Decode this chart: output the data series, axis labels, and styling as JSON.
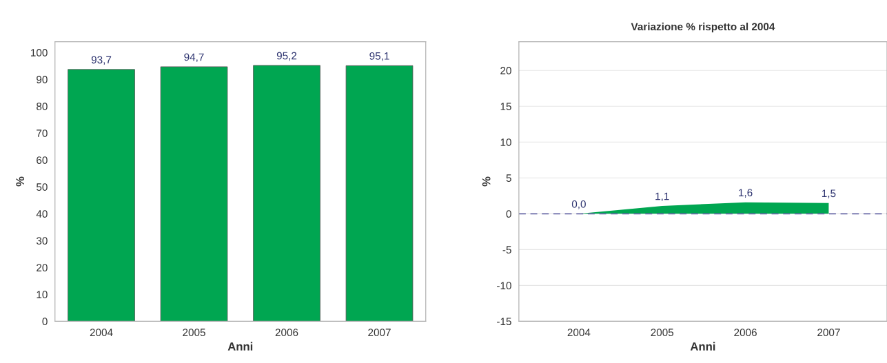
{
  "chart_data": [
    {
      "type": "bar",
      "categories": [
        "2004",
        "2005",
        "2006",
        "2007"
      ],
      "xlabel": "Anni",
      "ylabel": "%",
      "series": [
        {
          "color": "#00a651",
          "values": [
            93.7,
            94.7,
            95.2,
            95.1
          ],
          "value_labels": [
            "93,7",
            "94,7",
            "95,2",
            "95,1"
          ]
        }
      ],
      "ylim": [
        0,
        104
      ],
      "yticks": [
        0,
        10,
        20,
        30,
        40,
        50,
        60,
        70,
        80,
        90,
        100
      ],
      "grid": false
    },
    {
      "type": "area",
      "title": "Variazione % rispetto al 2004",
      "categories": [
        "2004",
        "2005",
        "2006",
        "2007"
      ],
      "xlabel": "Anni",
      "ylabel": "%",
      "series": [
        {
          "color": "#00a651",
          "values": [
            0.0,
            1.1,
            1.6,
            1.5
          ],
          "value_labels": [
            "0,0",
            "1,1",
            "1,6",
            "1,5"
          ]
        }
      ],
      "ylim": [
        -15,
        24
      ],
      "yticks": [
        -15,
        -10,
        -5,
        0,
        5,
        10,
        15,
        20
      ],
      "grid": "y",
      "ref_lines": [
        {
          "axis": "y",
          "value": 0,
          "color": "#6a6aa8",
          "line_style": "dashed"
        }
      ]
    }
  ]
}
